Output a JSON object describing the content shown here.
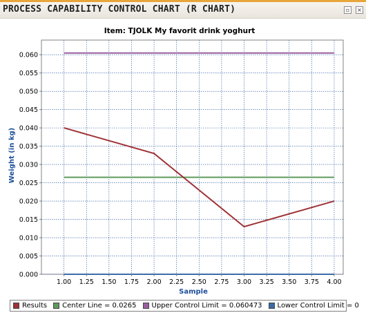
{
  "window": {
    "title": "PROCESS CAPABILITY CONTROL CHART (R CHART)",
    "buttons": [
      {
        "name": "restore",
        "icon": "restore-icon",
        "glyph": "▫"
      },
      {
        "name": "close",
        "icon": "close-icon",
        "glyph": "×"
      }
    ]
  },
  "colors": {
    "results": "#a03236",
    "center": "#5e9a5e",
    "ucl": "#9a5ea0",
    "lcl": "#3b6ca8",
    "axis_label": "#1f4f9a",
    "grid": "#1f4f9a"
  },
  "chart_data": {
    "type": "line",
    "title": "Item: TJOLK My favorit drink yoghurt",
    "xlabel": "Sample",
    "ylabel": "Weight (in kg)",
    "xlim": [
      0.75,
      4.1
    ],
    "ylim": [
      0,
      0.064
    ],
    "x_ticks": [
      "1.00",
      "1.25",
      "1.50",
      "1.75",
      "2.00",
      "2.25",
      "2.50",
      "2.75",
      "3.00",
      "3.25",
      "3.50",
      "3.75",
      "4.00"
    ],
    "y_ticks": [
      "0.000",
      "0.005",
      "0.010",
      "0.015",
      "0.020",
      "0.025",
      "0.030",
      "0.035",
      "0.040",
      "0.045",
      "0.050",
      "0.055",
      "0.060"
    ],
    "grid": true,
    "series": [
      {
        "name": "Results",
        "color": "#a03236",
        "x": [
          1,
          2,
          3,
          4
        ],
        "y": [
          0.04,
          0.033,
          0.013,
          0.02
        ]
      },
      {
        "name": "Center Line = 0.0265",
        "color": "#5e9a5e",
        "x": [
          1,
          4
        ],
        "y": [
          0.0265,
          0.0265
        ]
      },
      {
        "name": "Upper Control Limit = 0.060473",
        "color": "#9a5ea0",
        "x": [
          1,
          4
        ],
        "y": [
          0.060473,
          0.060473
        ]
      },
      {
        "name": "Lower Control Limit = 0",
        "color": "#3b6ca8",
        "x": [
          1,
          4
        ],
        "y": [
          0,
          0
        ]
      }
    ],
    "legend_position": "bottom"
  }
}
